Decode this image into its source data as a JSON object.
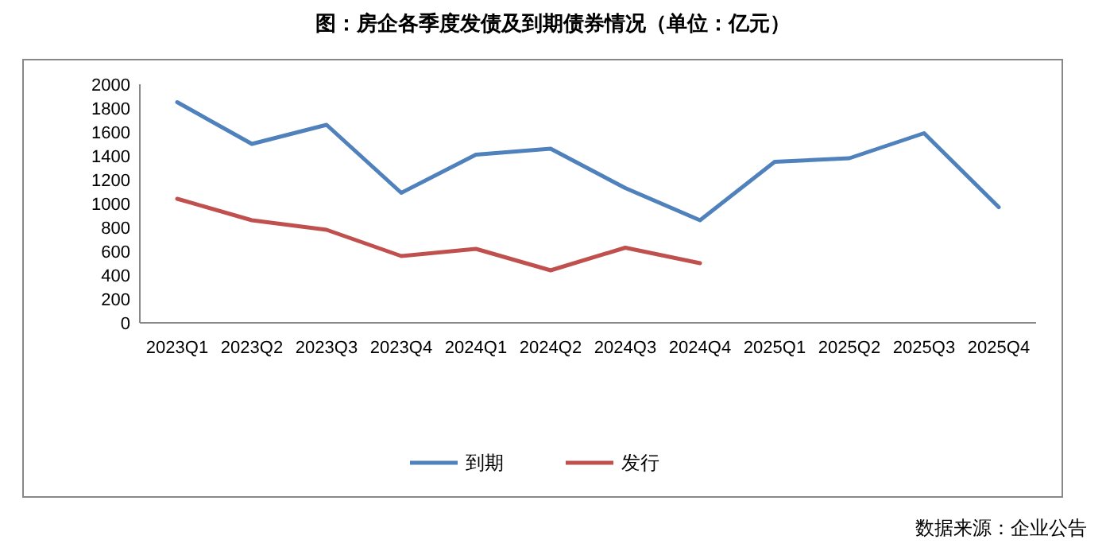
{
  "chart_data": {
    "type": "line",
    "title": "图：房企各季度发债及到期债券情况（单位：亿元）",
    "categories": [
      "2023Q1",
      "2023Q2",
      "2023Q3",
      "2023Q4",
      "2024Q1",
      "2024Q2",
      "2024Q3",
      "2024Q4",
      "2025Q1",
      "2025Q2",
      "2025Q3",
      "2025Q4"
    ],
    "series": [
      {
        "name": "到期",
        "color": "#4f81bd",
        "values": [
          1850,
          1500,
          1660,
          1090,
          1410,
          1460,
          1130,
          860,
          1350,
          1380,
          1590,
          970
        ]
      },
      {
        "name": "发行",
        "color": "#c0504d",
        "values": [
          1040,
          860,
          780,
          560,
          620,
          440,
          630,
          500,
          null,
          null,
          null,
          null
        ]
      }
    ],
    "ylim": [
      0,
      2000
    ],
    "yticks": [
      0,
      200,
      400,
      600,
      800,
      1000,
      1200,
      1400,
      1600,
      1800,
      2000
    ],
    "grid": false,
    "legend": "bottom",
    "marker": "none",
    "line_style": "solid",
    "annotations": [
      "数据来源：企业公告"
    ]
  }
}
